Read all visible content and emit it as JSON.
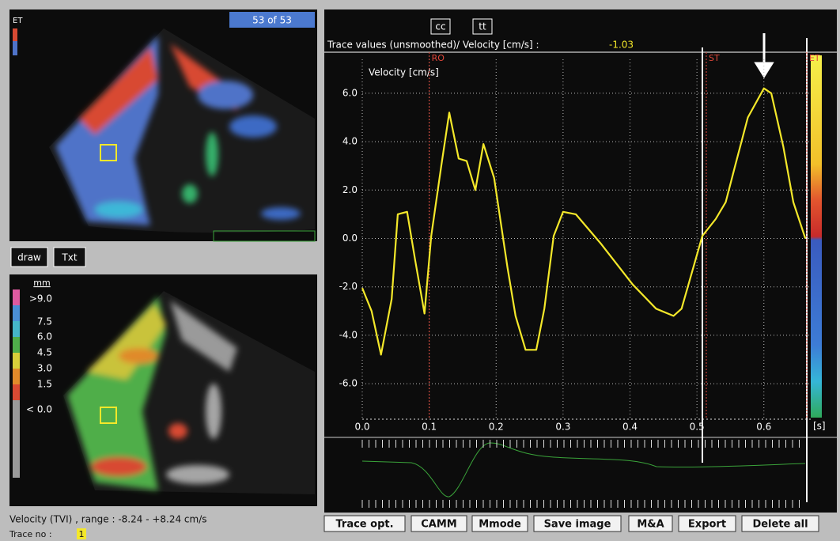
{
  "top_image": {
    "label": "ET",
    "counter": "53 of 53"
  },
  "tools": [
    "draw",
    "Txt"
  ],
  "bottom_image": {
    "unit": "mm",
    "scale": [
      ">9.0",
      "7.5",
      "6.0",
      "4.5",
      "3.0",
      "1.5",
      "< 0.0"
    ]
  },
  "status": {
    "range": "Velocity (TVI) , range : -8.24 -  +8.24 cm/s",
    "trace_label": "Trace no :",
    "trace_no": "1"
  },
  "toggles": [
    "cc",
    "tt"
  ],
  "readout": {
    "label": "Trace values (unsmoothed)/ Velocity [cm/s] :",
    "value": "-1.03"
  },
  "buttons": [
    "Trace opt.",
    "CAMM",
    "Mmode",
    "Save image",
    "M&A",
    "Export",
    "Delete all"
  ],
  "chart_data": {
    "type": "line",
    "y_label": "Velocity [cm/s]",
    "x_unit": "[s]",
    "x": [
      0.0,
      0.014,
      0.028,
      0.044,
      0.053,
      0.067,
      0.079,
      0.093,
      0.103,
      0.118,
      0.13,
      0.144,
      0.156,
      0.169,
      0.181,
      0.197,
      0.217,
      0.229,
      0.244,
      0.26,
      0.272,
      0.286,
      0.3,
      0.319,
      0.356,
      0.404,
      0.439,
      0.465,
      0.477,
      0.508,
      0.528,
      0.543,
      0.557,
      0.576,
      0.6,
      0.611,
      0.629,
      0.644,
      0.662
    ],
    "series": [
      {
        "color": "#f4e82a",
        "values": [
          -2.05,
          -3.0,
          -4.8,
          -2.5,
          1.0,
          1.1,
          -0.9,
          -3.1,
          0.1,
          3.0,
          5.2,
          3.3,
          3.2,
          2.0,
          3.9,
          2.5,
          -1.2,
          -3.2,
          -4.6,
          -4.6,
          -2.9,
          0.1,
          1.1,
          1.0,
          -0.2,
          -1.9,
          -2.9,
          -3.2,
          -2.9,
          0.1,
          0.8,
          1.5,
          3.0,
          5.0,
          6.2,
          6.0,
          3.8,
          1.5,
          0.0
        ]
      }
    ],
    "xlim": [
      0,
      0.67
    ],
    "ylim": [
      -7.4,
      7.4
    ],
    "xticks": [
      {
        "value": 0,
        "label": "0.0"
      },
      0.1,
      0.2,
      0.3,
      0.4,
      0.5,
      0.6
    ],
    "yticks": [
      {
        "value": 6,
        "label": "6.0"
      },
      {
        "value": 4,
        "label": "4.0"
      },
      {
        "value": 2,
        "label": "2.0"
      },
      {
        "value": 0,
        "label": "0.0"
      },
      {
        "value": -2,
        "label": "-2.0"
      },
      {
        "value": -4,
        "label": "-4.0"
      },
      {
        "value": -6,
        "label": "-6.0"
      }
    ],
    "grid": true,
    "markers": [
      {
        "label": "RO",
        "x": 0.1,
        "color": "#e0473a"
      },
      {
        "label": "ST",
        "x": 0.514,
        "color": "#e0473a"
      },
      {
        "label": "ET",
        "x": 0.664,
        "color": "#e0473a"
      }
    ]
  }
}
